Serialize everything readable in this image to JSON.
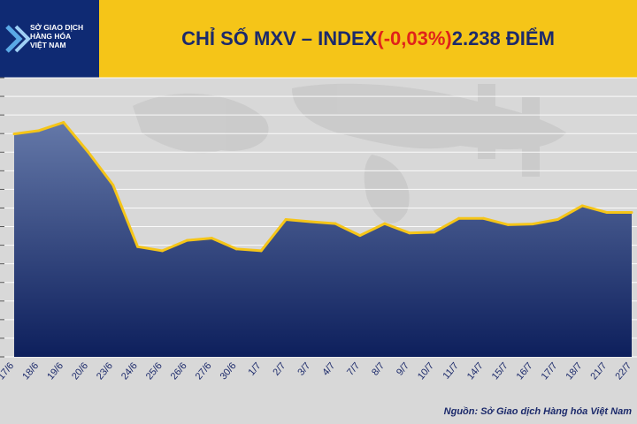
{
  "header": {
    "logo_line1": "SỞ GIAO DỊCH",
    "logo_line2": "HÀNG HÓA",
    "logo_line3": "VIỆT NAM",
    "title_prefix": "CHỈ SỐ MXV – INDEX ",
    "title_change": "(-0,03%)",
    "title_suffix": " 2.238 ĐIỂM"
  },
  "source": "Nguồn: Sở Giao dịch Hàng hóa Việt Nam",
  "colors": {
    "header_bg": "#f5c518",
    "logo_bg": "#0f2a73",
    "title_text": "#1c2a6b",
    "negative": "#e0231a",
    "line": "#f5c518",
    "area_top": "#6478a8",
    "area_bottom": "#0d1f5c"
  },
  "chart_data": {
    "type": "area",
    "title": "CHỈ SỐ MXV – INDEX (-0,03%) 2.238 ĐIỂM",
    "xlabel": "",
    "ylabel": "",
    "grid": true,
    "categories": [
      "17/6",
      "18/6",
      "19/6",
      "20/6",
      "23/6",
      "24/6",
      "25/6",
      "26/6",
      "27/6",
      "30/6",
      "1/7",
      "2/7",
      "3/7",
      "4/7",
      "7/7",
      "8/7",
      "9/7",
      "10/7",
      "11/7",
      "14/7",
      "15/7",
      "16/7",
      "17/7",
      "18/7",
      "21/7",
      "22/7"
    ],
    "values": [
      2449,
      2458,
      2480,
      2400,
      2312,
      2146,
      2135,
      2163,
      2169,
      2140,
      2135,
      2219,
      2213,
      2208,
      2176,
      2208,
      2183,
      2185,
      2222,
      2222,
      2205,
      2207,
      2219,
      2256,
      2238,
      2238
    ],
    "ylim": [
      1850,
      2600
    ]
  }
}
